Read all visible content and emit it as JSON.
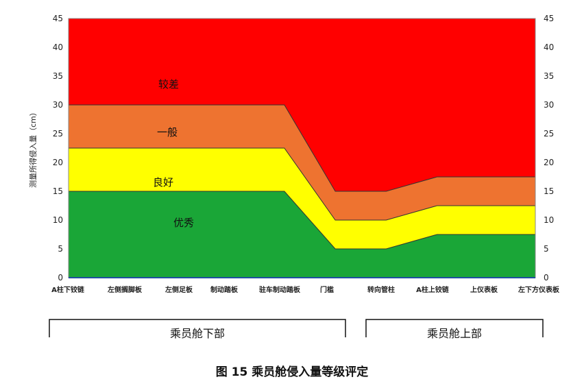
{
  "chart_data": {
    "type": "area",
    "categories": [
      "A柱下铰链",
      "左侧搁脚板",
      "左侧足板",
      "制动踏板",
      "驻车制动踏板",
      "门槛",
      "转向管柱",
      "A柱上铰链",
      "上仪表板",
      "左下方仪表板"
    ],
    "x_positions": [
      0,
      1,
      2,
      3,
      4,
      5,
      6,
      7,
      8,
      9
    ],
    "ylabel": "测量所得侵入量（cm）",
    "ylim": [
      0,
      45
    ],
    "yticks": [
      0,
      5,
      10,
      15,
      20,
      25,
      30,
      35,
      40,
      45
    ],
    "y2ticks": [
      0,
      5,
      10,
      15,
      20,
      25,
      30,
      35,
      40,
      45
    ],
    "grid": false,
    "boundaries": {
      "x": [
        0,
        4,
        5,
        6,
        7,
        9
      ],
      "green_top": [
        15,
        15,
        5,
        5,
        7.5,
        7.5
      ],
      "yellow_top": [
        22.5,
        22.5,
        10,
        10,
        12.5,
        12.5
      ],
      "orange_top": [
        30,
        30,
        15,
        15,
        17.5,
        17.5
      ]
    },
    "bands": [
      {
        "name": "优秀",
        "color": "#1aa637"
      },
      {
        "name": "良好",
        "color": "#ffff00"
      },
      {
        "name": "一般",
        "color": "#ee7330"
      },
      {
        "name": "较差",
        "color": "#ff0000"
      }
    ],
    "groups": [
      {
        "label": "乘员舱下部",
        "from": 0,
        "to": 5
      },
      {
        "label": "乘员舱上部",
        "from": 6,
        "to": 9
      }
    ],
    "caption": "图 15  乘员舱侵入量等级评定"
  }
}
